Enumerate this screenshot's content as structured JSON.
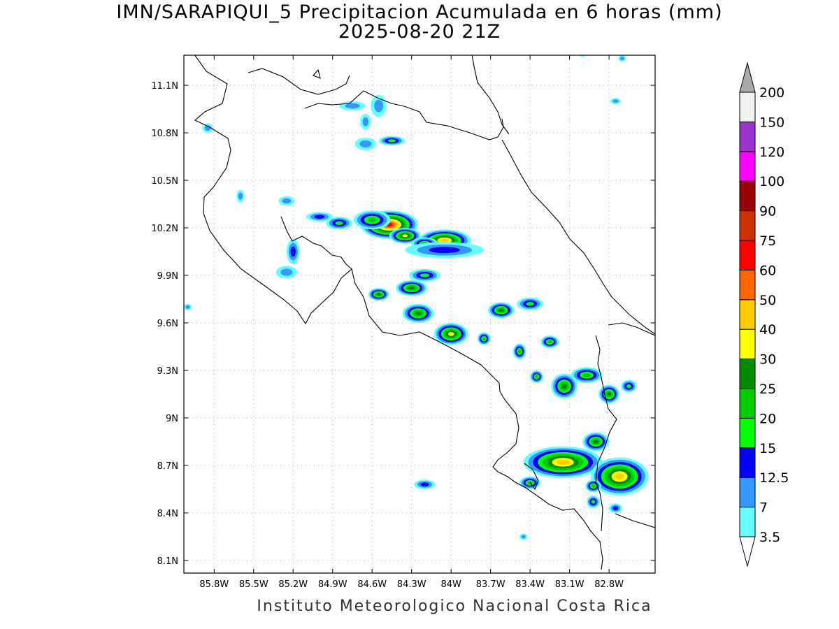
{
  "title_line1": "IMN/SARAPIQUI_5 Precipitacion Acumulada en 6 horas (mm)",
  "title_line2": "2025-08-20 21Z",
  "footer": "Instituto Meteorologico Nacional Costa Rica",
  "map": {
    "lon_range": [
      -86.03,
      -82.45
    ],
    "lat_range": [
      8.02,
      11.29
    ],
    "lon_ticks": [
      {
        "value": -85.8,
        "label": "85.8W"
      },
      {
        "value": -85.5,
        "label": "85.5W"
      },
      {
        "value": -85.2,
        "label": "85.2W"
      },
      {
        "value": -84.9,
        "label": "84.9W"
      },
      {
        "value": -84.6,
        "label": "84.6W"
      },
      {
        "value": -84.3,
        "label": "84.3W"
      },
      {
        "value": -84.0,
        "label": "84W"
      },
      {
        "value": -83.7,
        "label": "83.7W"
      },
      {
        "value": -83.4,
        "label": "83.4W"
      },
      {
        "value": -83.1,
        "label": "83.1W"
      },
      {
        "value": -82.8,
        "label": "82.8W"
      }
    ],
    "lat_ticks": [
      {
        "value": 11.1,
        "label": "11.1N"
      },
      {
        "value": 10.8,
        "label": "10.8N"
      },
      {
        "value": 10.5,
        "label": "10.5N"
      },
      {
        "value": 10.2,
        "label": "10.2N"
      },
      {
        "value": 9.9,
        "label": "9.9N"
      },
      {
        "value": 9.6,
        "label": "9.6N"
      },
      {
        "value": 9.3,
        "label": "9.3N"
      },
      {
        "value": 9.0,
        "label": "9N"
      },
      {
        "value": 8.7,
        "label": "8.7N"
      },
      {
        "value": 8.4,
        "label": "8.4N"
      },
      {
        "value": 8.1,
        "label": "8.1N"
      }
    ]
  },
  "colorbar": {
    "levels": [
      {
        "label": "3.5",
        "color": "#66ffff"
      },
      {
        "label": "7",
        "color": "#3399ff"
      },
      {
        "label": "12.5",
        "color": "#0000ff"
      },
      {
        "label": "15",
        "color": "#00ff00"
      },
      {
        "label": "20",
        "color": "#00cc00"
      },
      {
        "label": "25",
        "color": "#008c00"
      },
      {
        "label": "30",
        "color": "#ffff00"
      },
      {
        "label": "40",
        "color": "#ffcc00"
      },
      {
        "label": "50",
        "color": "#ff6600"
      },
      {
        "label": "60",
        "color": "#ff0000"
      },
      {
        "label": "75",
        "color": "#cc3300"
      },
      {
        "label": "90",
        "color": "#990000"
      },
      {
        "label": "100",
        "color": "#ff00ff"
      },
      {
        "label": "120",
        "color": "#9933cc"
      },
      {
        "label": "150",
        "color": "#f2f2f2"
      },
      {
        "label": "200",
        "color": "#aaaaaa"
      }
    ]
  },
  "precip_cells": [
    {
      "lon": -84.47,
      "lat": 10.22,
      "rx": 0.22,
      "ry": 0.09,
      "level": 9
    },
    {
      "lon": -84.35,
      "lat": 10.15,
      "rx": 0.12,
      "ry": 0.05,
      "level": 6
    },
    {
      "lon": -84.05,
      "lat": 10.12,
      "rx": 0.2,
      "ry": 0.07,
      "level": 7
    },
    {
      "lon": -84.2,
      "lat": 10.1,
      "rx": 0.1,
      "ry": 0.04,
      "level": 4
    },
    {
      "lon": -84.6,
      "lat": 10.25,
      "rx": 0.14,
      "ry": 0.06,
      "level": 4
    },
    {
      "lon": -84.85,
      "lat": 10.23,
      "rx": 0.1,
      "ry": 0.04,
      "level": 3
    },
    {
      "lon": -85.0,
      "lat": 10.27,
      "rx": 0.1,
      "ry": 0.03,
      "level": 2
    },
    {
      "lon": -84.05,
      "lat": 10.06,
      "rx": 0.3,
      "ry": 0.05,
      "level": 2
    },
    {
      "lon": -84.55,
      "lat": 9.78,
      "rx": 0.08,
      "ry": 0.04,
      "level": 5
    },
    {
      "lon": -84.3,
      "lat": 9.82,
      "rx": 0.12,
      "ry": 0.05,
      "level": 5
    },
    {
      "lon": -84.2,
      "lat": 9.9,
      "rx": 0.12,
      "ry": 0.04,
      "level": 3
    },
    {
      "lon": -84.25,
      "lat": 9.66,
      "rx": 0.12,
      "ry": 0.06,
      "level": 5
    },
    {
      "lon": -84.0,
      "lat": 9.53,
      "rx": 0.13,
      "ry": 0.07,
      "level": 6
    },
    {
      "lon": -83.75,
      "lat": 9.5,
      "rx": 0.05,
      "ry": 0.04,
      "level": 4
    },
    {
      "lon": -83.62,
      "lat": 9.68,
      "rx": 0.1,
      "ry": 0.05,
      "level": 5
    },
    {
      "lon": -83.4,
      "lat": 9.72,
      "rx": 0.1,
      "ry": 0.04,
      "level": 3
    },
    {
      "lon": -83.48,
      "lat": 9.42,
      "rx": 0.05,
      "ry": 0.05,
      "level": 4
    },
    {
      "lon": -83.25,
      "lat": 9.48,
      "rx": 0.07,
      "ry": 0.04,
      "level": 4
    },
    {
      "lon": -83.35,
      "lat": 9.26,
      "rx": 0.05,
      "ry": 0.04,
      "level": 4
    },
    {
      "lon": -83.14,
      "lat": 9.2,
      "rx": 0.1,
      "ry": 0.08,
      "level": 5
    },
    {
      "lon": -82.97,
      "lat": 9.27,
      "rx": 0.12,
      "ry": 0.05,
      "level": 4
    },
    {
      "lon": -82.8,
      "lat": 9.15,
      "rx": 0.08,
      "ry": 0.06,
      "level": 5
    },
    {
      "lon": -82.65,
      "lat": 9.2,
      "rx": 0.06,
      "ry": 0.04,
      "level": 3
    },
    {
      "lon": -82.9,
      "lat": 8.85,
      "rx": 0.1,
      "ry": 0.06,
      "level": 5
    },
    {
      "lon": -83.15,
      "lat": 8.72,
      "rx": 0.3,
      "ry": 0.1,
      "level": 7
    },
    {
      "lon": -82.72,
      "lat": 8.63,
      "rx": 0.22,
      "ry": 0.12,
      "level": 7
    },
    {
      "lon": -83.4,
      "lat": 8.59,
      "rx": 0.08,
      "ry": 0.04,
      "level": 4
    },
    {
      "lon": -82.92,
      "lat": 8.57,
      "rx": 0.06,
      "ry": 0.04,
      "level": 4
    },
    {
      "lon": -82.92,
      "lat": 8.47,
      "rx": 0.05,
      "ry": 0.04,
      "level": 3
    },
    {
      "lon": -84.45,
      "lat": 10.75,
      "rx": 0.1,
      "ry": 0.03,
      "level": 3
    },
    {
      "lon": -84.65,
      "lat": 10.73,
      "rx": 0.08,
      "ry": 0.04,
      "level": 1
    },
    {
      "lon": -84.75,
      "lat": 10.97,
      "rx": 0.1,
      "ry": 0.03,
      "level": 1
    },
    {
      "lon": -84.55,
      "lat": 10.97,
      "rx": 0.06,
      "ry": 0.07,
      "level": 1
    },
    {
      "lon": -84.65,
      "lat": 10.87,
      "rx": 0.04,
      "ry": 0.05,
      "level": 1
    },
    {
      "lon": -85.2,
      "lat": 10.05,
      "rx": 0.05,
      "ry": 0.08,
      "level": 2
    },
    {
      "lon": -85.25,
      "lat": 9.92,
      "rx": 0.08,
      "ry": 0.04,
      "level": 1
    },
    {
      "lon": -84.2,
      "lat": 8.58,
      "rx": 0.08,
      "ry": 0.03,
      "level": 2
    },
    {
      "lon": -82.75,
      "lat": 8.43,
      "rx": 0.05,
      "ry": 0.03,
      "level": 2
    },
    {
      "lon": -85.25,
      "lat": 10.37,
      "rx": 0.06,
      "ry": 0.03,
      "level": 1
    },
    {
      "lon": -85.85,
      "lat": 10.83,
      "rx": 0.04,
      "ry": 0.03,
      "level": 1
    },
    {
      "lon": -82.75,
      "lat": 11.0,
      "rx": 0.04,
      "ry": 0.02,
      "level": 1
    },
    {
      "lon": -82.7,
      "lat": 11.27,
      "rx": 0.03,
      "ry": 0.02,
      "level": 1
    },
    {
      "lon": -83.0,
      "lat": 11.3,
      "rx": 0.03,
      "ry": 0.02,
      "level": 1
    },
    {
      "lon": -83.45,
      "lat": 8.25,
      "rx": 0.03,
      "ry": 0.02,
      "level": 1
    },
    {
      "lon": -85.6,
      "lat": 10.4,
      "rx": 0.03,
      "ry": 0.04,
      "level": 1
    },
    {
      "lon": -86.0,
      "lat": 9.7,
      "rx": 0.03,
      "ry": 0.02,
      "level": 1
    }
  ]
}
